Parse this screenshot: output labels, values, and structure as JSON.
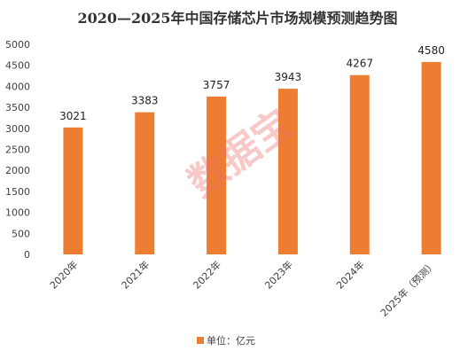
{
  "watermark": "数据宝",
  "chart_data": {
    "type": "bar",
    "title": "2020—2025年中国存储芯片市场规模预测趋势图",
    "categories": [
      "2020年",
      "2021年",
      "2022年",
      "2023年",
      "2024年",
      "2025年（预测）"
    ],
    "series": [
      {
        "name": "单位：亿元",
        "values": [
          3021,
          3383,
          3757,
          3943,
          4267,
          4580
        ],
        "color": "#ED7D31"
      }
    ],
    "ylim": [
      0,
      5000
    ],
    "yticks": [
      0,
      500,
      1000,
      1500,
      2000,
      2500,
      3000,
      3500,
      4000,
      4500,
      5000
    ],
    "grid": false,
    "legend_position": "bottom"
  }
}
